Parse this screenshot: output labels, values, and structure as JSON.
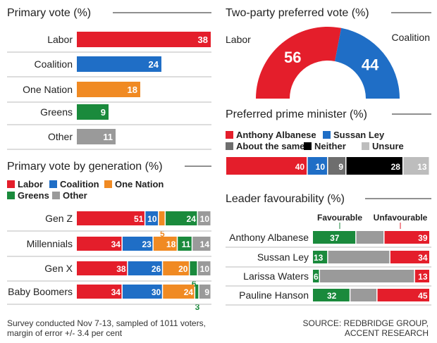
{
  "colors": {
    "labor": "#e41e2b",
    "coalition": "#1f6ec6",
    "one_nation": "#f08a23",
    "greens": "#1a8a3c",
    "other": "#9a9a9a",
    "about_same": "#6e6e6e",
    "neither": "#000000",
    "unsure": "#bdbdbd"
  },
  "chart_data": [
    {
      "type": "bar",
      "title": "Primary vote (%)",
      "categories": [
        "Labor",
        "Coalition",
        "One Nation",
        "Greens",
        "Other"
      ],
      "values": [
        38,
        24,
        18,
        9,
        11
      ],
      "colors": [
        "labor",
        "coalition",
        "one_nation",
        "greens",
        "other"
      ]
    },
    {
      "type": "pie",
      "title": "Two-party preferred vote (%)",
      "categories": [
        "Labor",
        "Coalition"
      ],
      "values": [
        56,
        44
      ]
    },
    {
      "type": "bar",
      "title": "Preferred prime minister (%)",
      "legend": [
        "Anthony Albanese",
        "Sussan Ley",
        "About the same",
        "Neither",
        "Unsure"
      ],
      "legend_colors": [
        "labor",
        "coalition",
        "about_same",
        "neither",
        "unsure"
      ],
      "values": [
        40,
        10,
        9,
        28,
        13
      ]
    },
    {
      "type": "bar",
      "title": "Primary vote by generation (%)",
      "legend": [
        "Labor",
        "Coalition",
        "One Nation",
        "Greens",
        "Other"
      ],
      "legend_colors": [
        "labor",
        "coalition",
        "one_nation",
        "greens",
        "other"
      ],
      "categories": [
        "Gen Z",
        "Millennials",
        "Gen X",
        "Baby Boomers"
      ],
      "series": [
        {
          "color": "labor",
          "values": [
            51,
            34,
            38,
            34
          ]
        },
        {
          "color": "coalition",
          "values": [
            10,
            23,
            26,
            30
          ]
        },
        {
          "color": "one_nation",
          "values": [
            5,
            18,
            20,
            24
          ]
        },
        {
          "color": "greens",
          "values": [
            24,
            11,
            6,
            3
          ]
        },
        {
          "color": "other",
          "values": [
            10,
            14,
            10,
            9
          ]
        }
      ]
    },
    {
      "type": "bar",
      "title": "Leader favourability (%)",
      "column_labels": [
        "Favourable",
        "Unfavourable"
      ],
      "categories": [
        "Anthony Albanese",
        "Sussan Ley",
        "Larissa Waters",
        "Pauline Hanson"
      ],
      "series": [
        {
          "name": "Favourable",
          "color": "greens",
          "values": [
            37,
            13,
            6,
            32
          ]
        },
        {
          "color": "other",
          "values": [
            24,
            53,
            81,
            23
          ]
        },
        {
          "name": "Unfavourable",
          "color": "labor",
          "values": [
            39,
            34,
            13,
            45
          ]
        }
      ]
    }
  ],
  "footer": {
    "survey_line1": "Survey conducted Nov 7-13,  sampled of 1011 voters,",
    "survey_line2": "margin of error +/- 3.4 per cent",
    "source_line1": "SOURCE: REDBRIDGE GROUP,",
    "source_line2": "ACCENT RESEARCH"
  }
}
